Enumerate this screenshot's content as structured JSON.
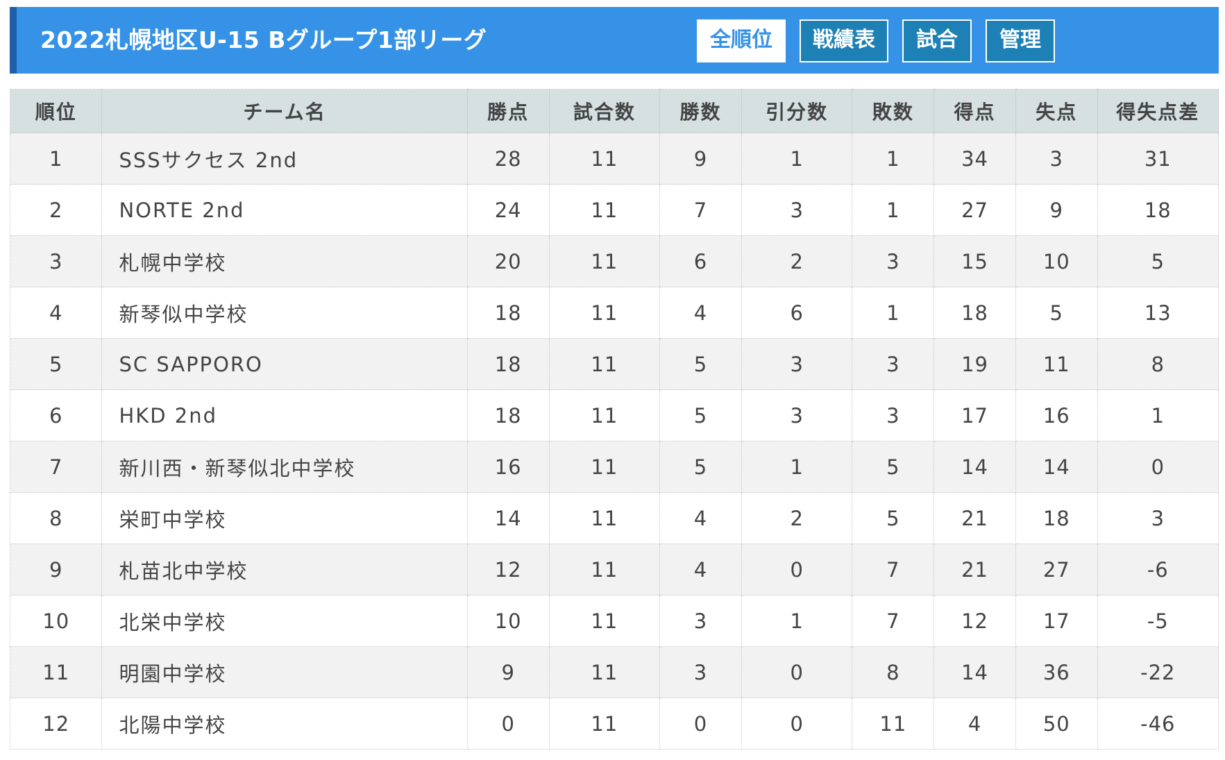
{
  "header": {
    "title": "2022札幌地区U-15 Bグループ1部リーグ",
    "buttons": [
      {
        "label": "全順位",
        "active": true
      },
      {
        "label": "戦績表",
        "active": false
      },
      {
        "label": "試合",
        "active": false
      },
      {
        "label": "管理",
        "active": false
      }
    ]
  },
  "table": {
    "columns": [
      "順位",
      "チーム名",
      "勝点",
      "試合数",
      "勝数",
      "引分数",
      "敗数",
      "得点",
      "失点",
      "得失点差"
    ],
    "rows": [
      [
        "1",
        "SSSサクセス 2nd",
        "28",
        "11",
        "9",
        "1",
        "1",
        "34",
        "3",
        "31"
      ],
      [
        "2",
        "NORTE 2nd",
        "24",
        "11",
        "7",
        "3",
        "1",
        "27",
        "9",
        "18"
      ],
      [
        "3",
        "札幌中学校",
        "20",
        "11",
        "6",
        "2",
        "3",
        "15",
        "10",
        "5"
      ],
      [
        "4",
        "新琴似中学校",
        "18",
        "11",
        "4",
        "6",
        "1",
        "18",
        "5",
        "13"
      ],
      [
        "5",
        "SC SAPPORO",
        "18",
        "11",
        "5",
        "3",
        "3",
        "19",
        "11",
        "8"
      ],
      [
        "6",
        "HKD 2nd",
        "18",
        "11",
        "5",
        "3",
        "3",
        "17",
        "16",
        "1"
      ],
      [
        "7",
        "新川西・新琴似北中学校",
        "16",
        "11",
        "5",
        "1",
        "5",
        "14",
        "14",
        "0"
      ],
      [
        "8",
        "栄町中学校",
        "14",
        "11",
        "4",
        "2",
        "5",
        "21",
        "18",
        "3"
      ],
      [
        "9",
        "札苗北中学校",
        "12",
        "11",
        "4",
        "0",
        "7",
        "21",
        "27",
        "-6"
      ],
      [
        "10",
        "北栄中学校",
        "10",
        "11",
        "3",
        "1",
        "7",
        "12",
        "17",
        "-5"
      ],
      [
        "11",
        "明園中学校",
        "9",
        "11",
        "3",
        "0",
        "8",
        "14",
        "36",
        "-22"
      ],
      [
        "12",
        "北陽中学校",
        "0",
        "11",
        "0",
        "0",
        "11",
        "4",
        "50",
        "-46"
      ]
    ]
  },
  "colors": {
    "header_bg": "#3592e6",
    "header_accent": "#1f5fa8",
    "button_bg": "#1d81b5",
    "table_header_bg": "#d6e0e0",
    "row_alt_bg": "#f2f2f2"
  }
}
